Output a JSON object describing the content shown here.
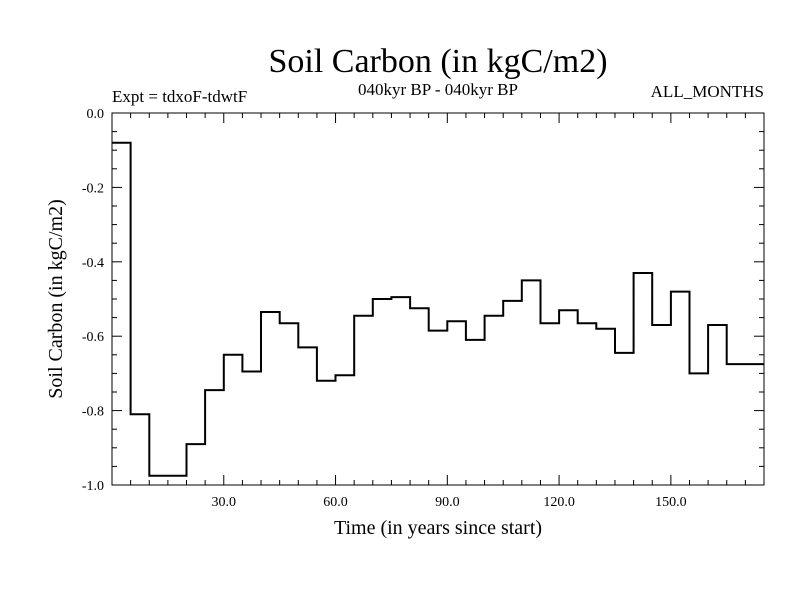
{
  "chart_data": {
    "type": "line",
    "step": true,
    "title": "Soil Carbon (in kgC/m2)",
    "subtitle_left": "Expt = tdxoF-tdwtF",
    "subtitle_center": "040kyr BP - 040kyr BP",
    "subtitle_right": "ALL_MONTHS",
    "xlabel": "Time (in years since start)",
    "ylabel": "Soil Carbon (in kgC/m2)",
    "xlim": [
      0,
      175
    ],
    "ylim": [
      -1.0,
      0.0
    ],
    "xticks": [
      30,
      60,
      90,
      120,
      150
    ],
    "xtick_labels": [
      "30.0",
      "60.0",
      "90.0",
      "120.0",
      "150.0"
    ],
    "yticks": [
      0.0,
      -0.2,
      -0.4,
      -0.6,
      -0.8,
      -1.0
    ],
    "ytick_labels": [
      "0.0",
      "-0.2",
      "-0.4",
      "-0.6",
      "-0.8",
      "-1.0"
    ],
    "grid": false,
    "color": "#000000",
    "x": [
      0,
      5,
      10,
      20,
      25,
      30,
      35,
      40,
      45,
      50,
      55,
      60,
      65,
      70,
      75,
      80,
      85,
      90,
      95,
      100,
      105,
      110,
      115,
      120,
      125,
      130,
      135,
      140,
      145,
      150,
      155,
      160,
      165
    ],
    "y": [
      -0.08,
      -0.81,
      -0.975,
      -0.89,
      -0.745,
      -0.65,
      -0.695,
      -0.535,
      -0.565,
      -0.63,
      -0.72,
      -0.705,
      -0.545,
      -0.5,
      -0.495,
      -0.525,
      -0.585,
      -0.56,
      -0.61,
      -0.545,
      -0.505,
      -0.45,
      -0.565,
      -0.53,
      -0.565,
      -0.58,
      -0.645,
      -0.43,
      -0.57,
      -0.48,
      -0.7,
      -0.57,
      -0.675
    ],
    "x_end": 175
  }
}
